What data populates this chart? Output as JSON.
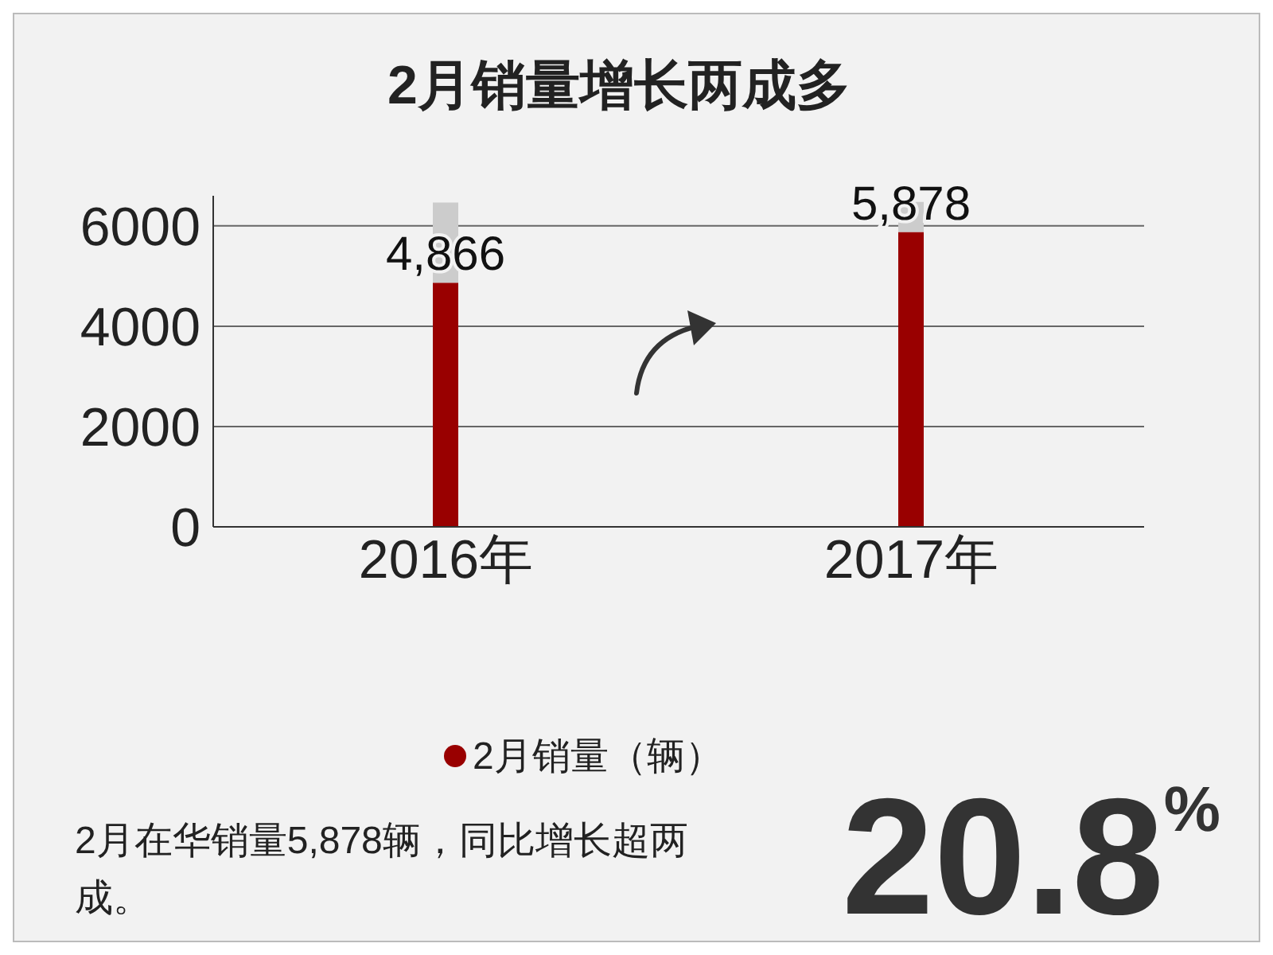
{
  "chart_data": {
    "type": "bar",
    "title": "2月销量增长两成多",
    "categories": [
      "2016年",
      "2017年"
    ],
    "stacked": true,
    "series": [
      {
        "name": "2月销量（辆）",
        "color": "#990000",
        "values": [
          4866,
          5878
        ],
        "value_labels": [
          "4,866",
          "5,878"
        ]
      },
      {
        "color": "#cccccc",
        "values": [
          1600,
          600
        ]
      }
    ],
    "ylim": [
      0,
      6600
    ],
    "yticks": [
      0,
      2000,
      4000,
      6000
    ],
    "grid": "y",
    "legend": "bottom",
    "annotations": [
      "2月在华销量5,878辆，同比增长超两成。",
      "20.8%"
    ]
  }
}
